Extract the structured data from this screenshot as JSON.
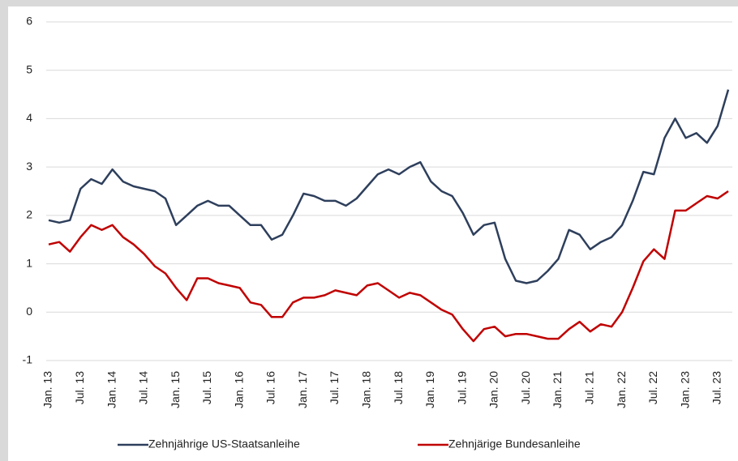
{
  "chart_data": {
    "type": "line",
    "categories": [
      "Jan. 13",
      null,
      null,
      "Jul. 13",
      null,
      null,
      "Jan. 14",
      null,
      null,
      "Jul. 14",
      null,
      null,
      "Jan. 15",
      null,
      null,
      "Jul. 15",
      null,
      null,
      "Jan. 16",
      null,
      null,
      "Jul. 16",
      null,
      null,
      "Jan. 17",
      null,
      null,
      "Jul. 17",
      null,
      null,
      "Jan. 18",
      null,
      null,
      "Jul. 18",
      null,
      null,
      "Jan. 19",
      null,
      null,
      "Jul. 19",
      null,
      null,
      "Jan. 20",
      null,
      null,
      "Jul. 20",
      null,
      null,
      "Jan. 21",
      null,
      null,
      "Jul. 21",
      null,
      null,
      "Jan. 22",
      null,
      null,
      "Jul. 22",
      null,
      null,
      "Jan. 23",
      null,
      null,
      "Jul. 23",
      null
    ],
    "series": [
      {
        "name": "Zehnjährige US-Staatsanleihe",
        "color": "#2e3f5c",
        "values": [
          1.9,
          1.85,
          1.9,
          2.55,
          2.75,
          2.65,
          2.95,
          2.7,
          2.6,
          2.55,
          2.5,
          2.35,
          1.8,
          2.0,
          2.2,
          2.3,
          2.2,
          2.2,
          2.0,
          1.8,
          1.8,
          1.5,
          1.6,
          2.0,
          2.45,
          2.4,
          2.3,
          2.3,
          2.2,
          2.35,
          2.6,
          2.85,
          2.95,
          2.85,
          3.0,
          3.1,
          2.7,
          2.5,
          2.4,
          2.05,
          1.6,
          1.8,
          1.85,
          1.1,
          0.65,
          0.6,
          0.65,
          0.85,
          1.1,
          1.7,
          1.6,
          1.3,
          1.45,
          1.55,
          1.8,
          2.3,
          2.9,
          2.85,
          3.6,
          4.0,
          3.6,
          3.7,
          3.5,
          3.85,
          4.6
        ]
      },
      {
        "name": "Zehnjärige Bundesanleihe",
        "color": "#c00000",
        "values": [
          1.4,
          1.45,
          1.25,
          1.55,
          1.8,
          1.7,
          1.8,
          1.55,
          1.4,
          1.2,
          0.95,
          0.8,
          0.5,
          0.25,
          0.7,
          0.7,
          0.6,
          0.55,
          0.5,
          0.2,
          0.15,
          -0.1,
          -0.1,
          0.2,
          0.3,
          0.3,
          0.35,
          0.45,
          0.4,
          0.35,
          0.55,
          0.6,
          0.45,
          0.3,
          0.4,
          0.35,
          0.2,
          0.05,
          -0.05,
          -0.35,
          -0.6,
          -0.35,
          -0.3,
          -0.5,
          -0.45,
          -0.45,
          -0.5,
          -0.55,
          -0.55,
          -0.35,
          -0.2,
          -0.4,
          -0.25,
          -0.3,
          0.0,
          0.5,
          1.05,
          1.3,
          1.1,
          2.1,
          2.1,
          2.25,
          2.4,
          2.35,
          2.5
        ]
      }
    ],
    "ylim": [
      -1,
      6
    ],
    "yticks": [
      -1,
      0,
      1,
      2,
      3,
      4,
      5,
      6
    ],
    "grid": true
  }
}
